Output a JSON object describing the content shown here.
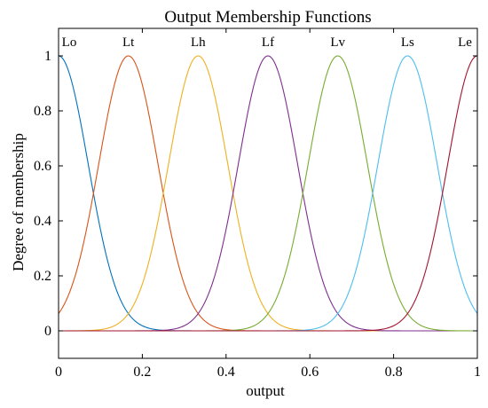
{
  "chart_data": {
    "type": "line",
    "title": "Output  Membership Functions",
    "xlabel": "output",
    "ylabel": "Degree of membership",
    "xlim": [
      0,
      1
    ],
    "ylim": [
      -0.1,
      1.1
    ],
    "grid": false,
    "x_ticks": [
      0,
      0.2,
      0.4,
      0.6,
      0.8,
      1
    ],
    "x_tick_labels": [
      "0",
      "0.2",
      "0.4",
      "0.6",
      "0.8",
      "1"
    ],
    "y_ticks": [
      0,
      0.2,
      0.4,
      0.6,
      0.8,
      1
    ],
    "y_tick_labels": [
      "0",
      "0.2",
      "0.4",
      "0.6",
      "0.8",
      "1"
    ],
    "curve_shape": "gaussian",
    "series": [
      {
        "name": "Lo",
        "center": 0.0,
        "sigma": 0.0708,
        "color": "#0072BD"
      },
      {
        "name": "Lt",
        "center": 0.1667,
        "sigma": 0.0708,
        "color": "#D95319"
      },
      {
        "name": "Lh",
        "center": 0.3333,
        "sigma": 0.0708,
        "color": "#EDB120"
      },
      {
        "name": "Lf",
        "center": 0.5,
        "sigma": 0.0708,
        "color": "#7E2F8E"
      },
      {
        "name": "Lv",
        "center": 0.6667,
        "sigma": 0.0708,
        "color": "#77AC30"
      },
      {
        "name": "Ls",
        "center": 0.8333,
        "sigma": 0.0708,
        "color": "#4DBEEE"
      },
      {
        "name": "Le",
        "center": 1.0,
        "sigma": 0.0708,
        "color": "#A2142F"
      }
    ]
  }
}
